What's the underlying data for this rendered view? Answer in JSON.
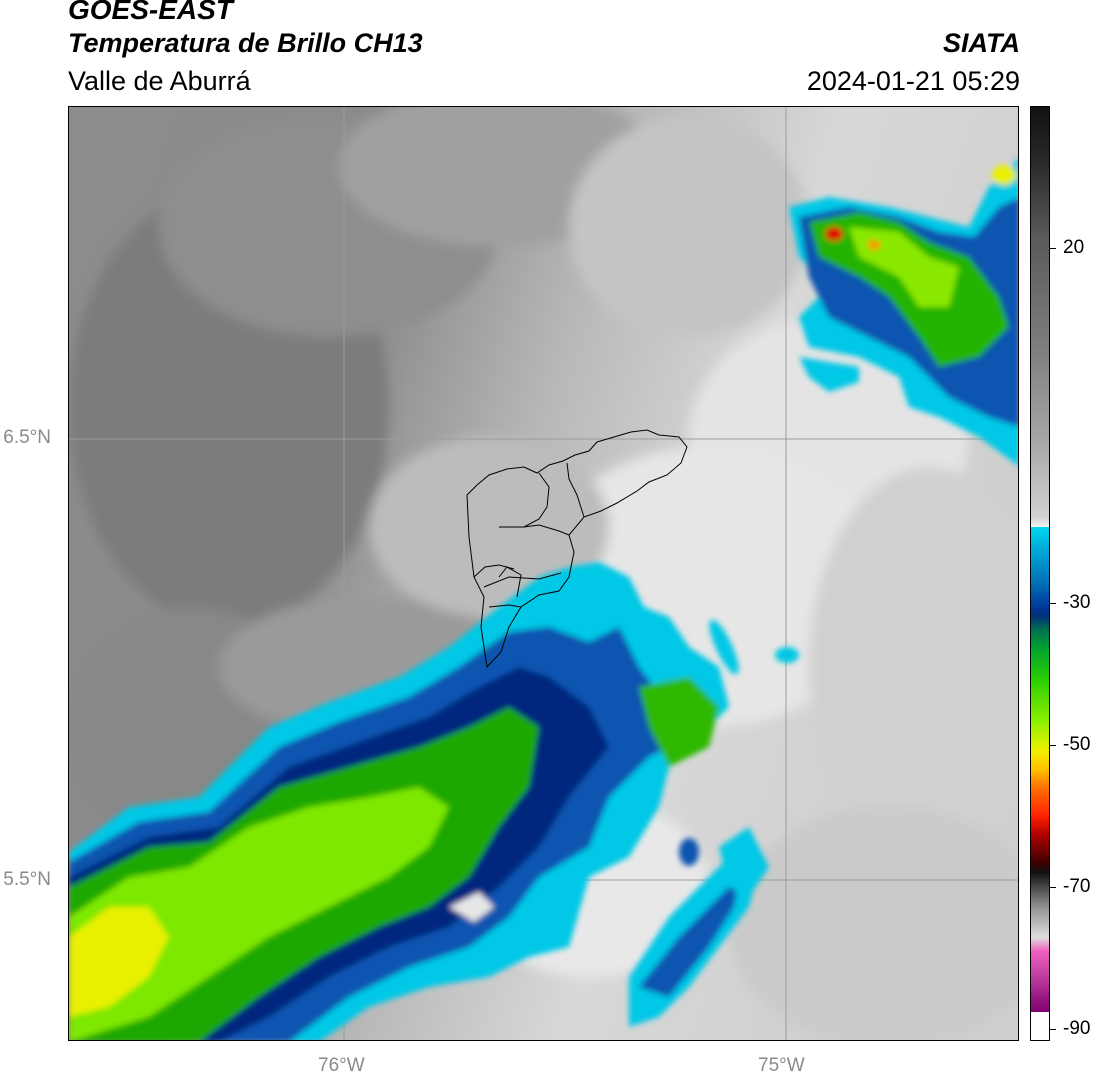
{
  "header": {
    "title": "GOES-EAST",
    "subtitle": "Temperatura de Brillo CH13",
    "region": "Valle de Aburrá",
    "agency": "SIATA",
    "datetime": "2024-01-21 05:29"
  },
  "axes": {
    "lat_labels": [
      "6.5°N",
      "5.5°N"
    ],
    "lon_labels": [
      "76°W",
      "75°W"
    ]
  },
  "colorbar": {
    "ticks": [
      "20",
      "-30",
      "-50",
      "-70",
      "-90"
    ],
    "range": [
      -92,
      40
    ]
  },
  "colors": {
    "cloud_cyan": "#00c8e6",
    "cloud_blue": "#003c9c",
    "cloud_green": "#2ec800",
    "cloud_yellow": "#d8f000",
    "cloud_red": "#e00000"
  }
}
